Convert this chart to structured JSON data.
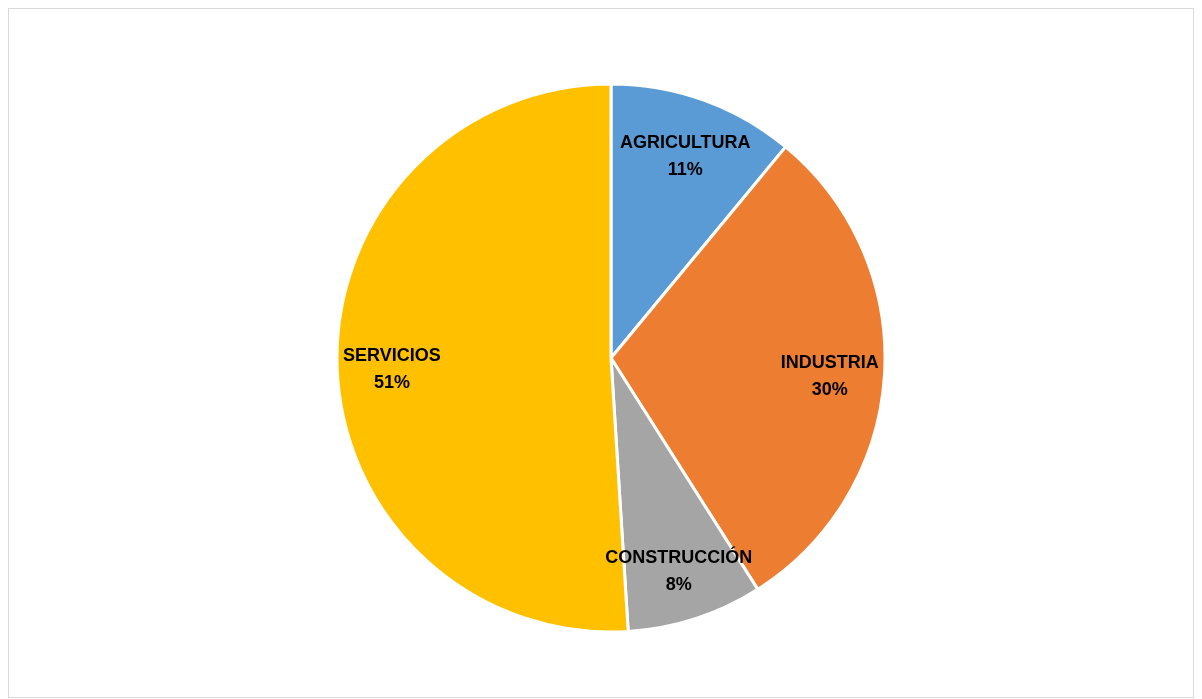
{
  "chart_data": {
    "type": "pie",
    "categories": [
      "AGRICULTURA",
      "INDUSTRIA",
      "CONSTRUCCIÓN",
      "SERVICIOS"
    ],
    "values": [
      11,
      30,
      8,
      51
    ],
    "colors": [
      "#5b9bd5",
      "#ed7d31",
      "#a5a5a5",
      "#ffc000"
    ],
    "value_labels": [
      "11%",
      "30%",
      "8%",
      "51%"
    ]
  }
}
